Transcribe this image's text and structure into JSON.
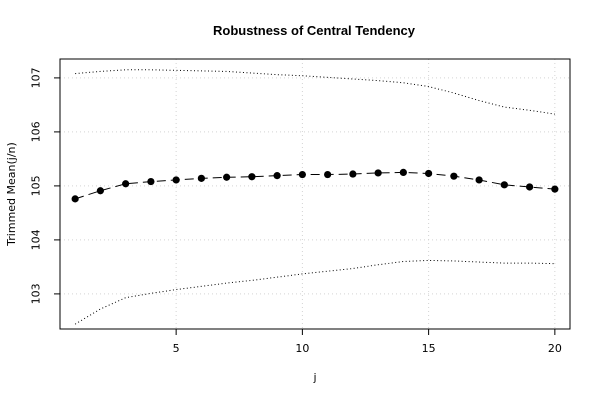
{
  "chart_data": {
    "type": "line",
    "title": "Robustness of Central Tendency",
    "xlabel": "j",
    "ylabel": "Trimmed Mean(j/n)",
    "xlim": [
      0.4,
      20.6
    ],
    "ylim": [
      102.35,
      107.35
    ],
    "x_ticks": [
      5,
      10,
      15,
      20
    ],
    "y_ticks": [
      103,
      104,
      105,
      106,
      107
    ],
    "grid": true,
    "legend": "none",
    "x": [
      1,
      2,
      3,
      4,
      5,
      6,
      7,
      8,
      9,
      10,
      11,
      12,
      13,
      14,
      15,
      16,
      17,
      18,
      19,
      20
    ],
    "series": [
      {
        "role": "mean",
        "style": "dashed-points",
        "color": "#000000",
        "values": [
          104.76,
          104.91,
          105.04,
          105.08,
          105.11,
          105.14,
          105.16,
          105.17,
          105.19,
          105.21,
          105.21,
          105.22,
          105.24,
          105.25,
          105.23,
          105.18,
          105.11,
          105.02,
          104.98,
          104.94
        ]
      },
      {
        "role": "upper",
        "style": "dotted",
        "color": "#000000",
        "values": [
          107.08,
          107.12,
          107.15,
          107.15,
          107.14,
          107.13,
          107.12,
          107.09,
          107.06,
          107.04,
          107.01,
          106.98,
          106.95,
          106.91,
          106.84,
          106.72,
          106.58,
          106.46,
          106.4,
          106.33
        ]
      },
      {
        "role": "lower",
        "style": "dotted",
        "color": "#000000",
        "values": [
          102.44,
          102.72,
          102.93,
          103.01,
          103.08,
          103.14,
          103.2,
          103.25,
          103.31,
          103.37,
          103.42,
          103.47,
          103.54,
          103.6,
          103.62,
          103.61,
          103.59,
          103.57,
          103.57,
          103.56
        ]
      }
    ]
  }
}
